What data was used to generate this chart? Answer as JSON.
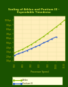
{
  "title_line1": "Scaling of Athlon and Pentium III -",
  "title_line2": "Expendable Timedemo",
  "background_color": "#1a5200",
  "plot_bg_color": "#ffeebb",
  "athlon_x": [
    500,
    550,
    600,
    650,
    700,
    750,
    800,
    850,
    900,
    950,
    1000,
    1050,
    1100
  ],
  "athlon_y": [
    28,
    32,
    36,
    41,
    46,
    52,
    58,
    64,
    71,
    78,
    85,
    92,
    100
  ],
  "piii_x": [
    500,
    550,
    600,
    650,
    700,
    750,
    800,
    850,
    900,
    950,
    1000
  ],
  "piii_y": [
    22,
    26,
    29,
    33,
    37,
    41,
    45,
    50,
    54,
    59,
    63
  ],
  "athlon_color": "#88bb00",
  "piii_color": "#2255cc",
  "xlabel": "Processor Speed",
  "ylabel": "",
  "ylim": [
    10,
    110
  ],
  "xlim": [
    490,
    1110
  ],
  "title_color": "#ccdd44",
  "tick_color": "#aaaa00",
  "tick_label_color": "#cccc33",
  "legend_athlon": "---- Athlon",
  "legend_piii": "---- Pentium III",
  "grid_color": "#cccc88",
  "ytick_labels": [
    "10fps",
    "20fps",
    "30fps",
    "40fps",
    "50fps",
    "60fps",
    "70fps",
    "80fps",
    "90fps",
    "100fps"
  ],
  "ytick_values": [
    10,
    20,
    30,
    40,
    50,
    60,
    70,
    80,
    90,
    100
  ],
  "xtick_values": [
    500,
    600,
    700,
    800,
    900,
    1000,
    1100
  ],
  "border_color": "#336600"
}
